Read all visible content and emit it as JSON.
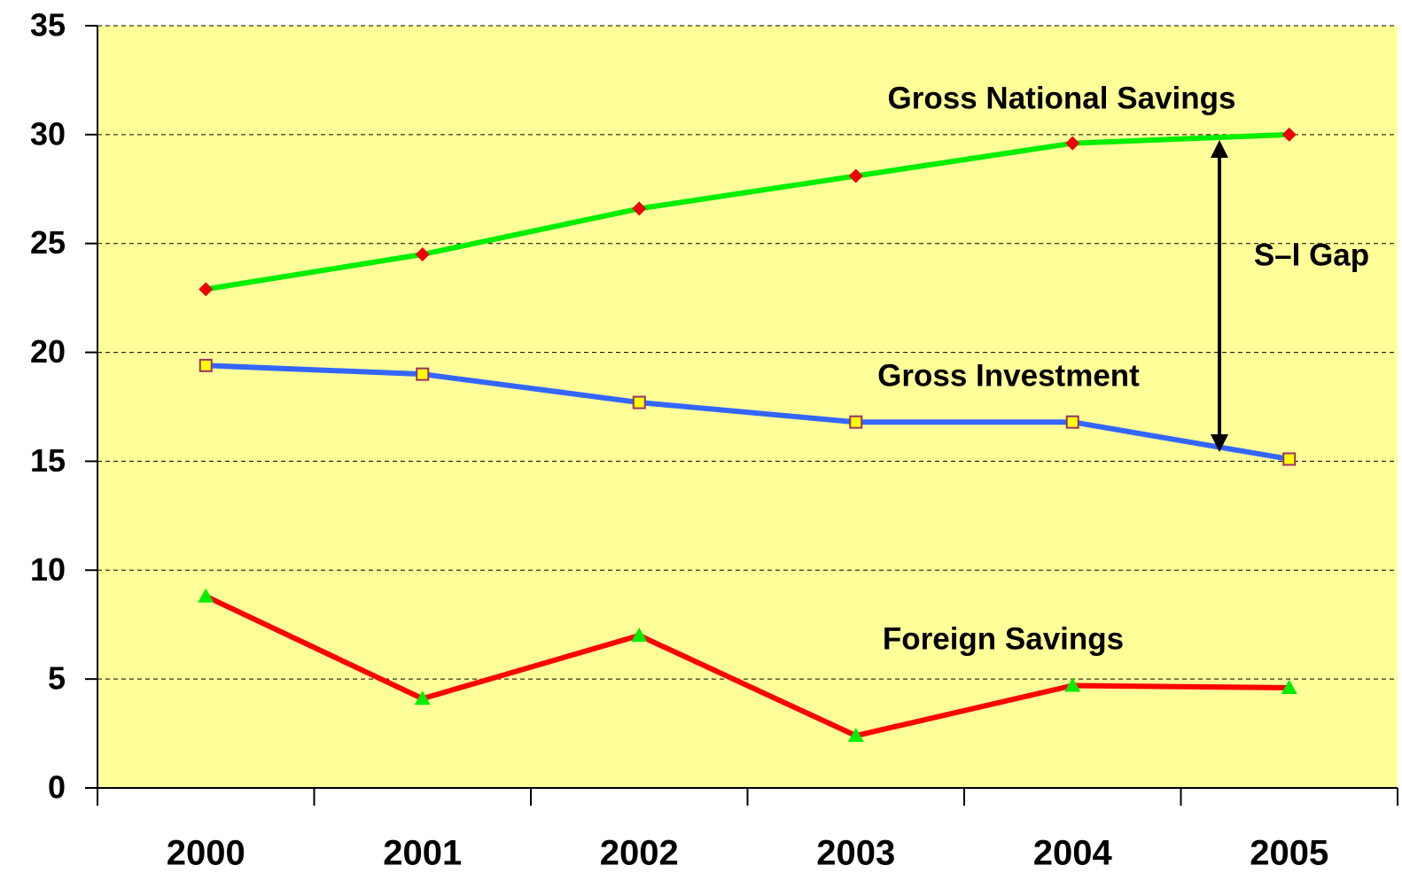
{
  "chart_data": {
    "type": "line",
    "categories": [
      "2000",
      "2001",
      "2002",
      "2003",
      "2004",
      "2005"
    ],
    "series": [
      {
        "name": "Gross National Savings",
        "color": "#00ee00",
        "marker": "diamond",
        "marker_color": "#ee0000",
        "values": [
          22.9,
          24.5,
          26.6,
          28.1,
          29.6,
          30.0
        ]
      },
      {
        "name": "Gross Investment",
        "color": "#3366ff",
        "marker": "square",
        "marker_color": "#ffff00",
        "values": [
          19.4,
          19.0,
          17.7,
          16.8,
          16.8,
          15.1
        ]
      },
      {
        "name": "Foreign Savings",
        "color": "#ff0000",
        "marker": "triangle",
        "marker_color": "#00ee00",
        "values": [
          8.8,
          4.1,
          7.0,
          2.4,
          4.7,
          4.6
        ]
      }
    ],
    "annotations": [
      "S–I Gap"
    ],
    "ylim": [
      0,
      35
    ],
    "yticks": [
      0,
      5,
      10,
      15,
      20,
      25,
      30,
      35
    ],
    "grid": true,
    "background": "#ffff99"
  }
}
